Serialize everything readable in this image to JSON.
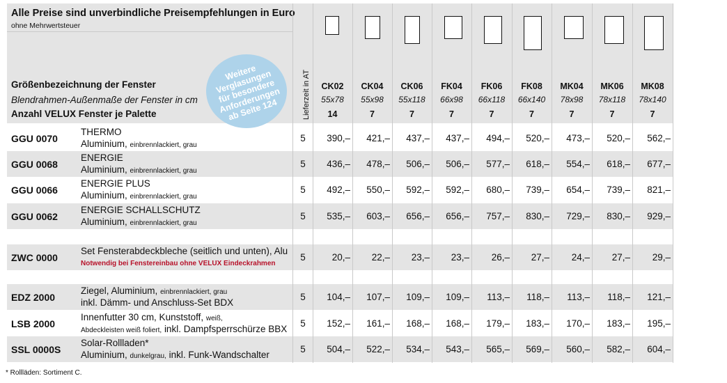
{
  "header": {
    "title": "Alle Preise sind unverbindliche Preisempfehlungen in Euro",
    "subtitle": "ohne Mehrwertsteuer",
    "label_size": "Größenbezeichnung der Fenster",
    "label_dims": "Blendrahmen-Außenmaße der Fenster in cm",
    "label_count": "Anzahl VELUX Fenster je Palette",
    "badge": "Weitere\nVerglasungen\nfür besondere\nAnforderungen\nab Seite 124",
    "lieferzeit": "Lieferzeit in AT"
  },
  "sizes": [
    {
      "code": "CK02",
      "dims": "55x78",
      "count": "14"
    },
    {
      "code": "CK04",
      "dims": "55x98",
      "count": "7"
    },
    {
      "code": "CK06",
      "dims": "55x118",
      "count": "7"
    },
    {
      "code": "FK04",
      "dims": "66x98",
      "count": "7"
    },
    {
      "code": "FK06",
      "dims": "66x118",
      "count": "7"
    },
    {
      "code": "FK08",
      "dims": "66x140",
      "count": "7"
    },
    {
      "code": "MK04",
      "dims": "78x98",
      "count": "7"
    },
    {
      "code": "MK06",
      "dims": "78x118",
      "count": "7"
    },
    {
      "code": "MK08",
      "dims": "78x140",
      "count": "7"
    }
  ],
  "rows": [
    {
      "code": "GGU 0070",
      "line1": "THERMO",
      "line2_main": "Aluminium,",
      "line2_small": "einbrennlackiert, grau",
      "line2_tail": "",
      "lead": "5",
      "prices": [
        "390,–",
        "421,–",
        "437,–",
        "437,–",
        "494,–",
        "520,–",
        "473,–",
        "520,–",
        "562,–"
      ]
    },
    {
      "code": "GGU 0068",
      "line1": "ENERGIE",
      "line2_main": "Aluminium,",
      "line2_small": "einbrennlackiert, grau",
      "line2_tail": "",
      "lead": "5",
      "prices": [
        "436,–",
        "478,–",
        "506,–",
        "506,–",
        "577,–",
        "618,–",
        "554,–",
        "618,–",
        "677,–"
      ]
    },
    {
      "code": "GGU 0066",
      "line1": "ENERGIE PLUS",
      "line2_main": "Aluminium,",
      "line2_small": "einbrennlackiert, grau",
      "line2_tail": "",
      "lead": "5",
      "prices": [
        "492,–",
        "550,–",
        "592,–",
        "592,–",
        "680,–",
        "739,–",
        "654,–",
        "739,–",
        "821,–"
      ]
    },
    {
      "code": "GGU 0062",
      "line1": "ENERGIE SCHALLSCHUTZ",
      "line2_main": "Aluminium,",
      "line2_small": "einbrennlackiert, grau",
      "line2_tail": "",
      "lead": "5",
      "prices": [
        "535,–",
        "603,–",
        "656,–",
        "656,–",
        "757,–",
        "830,–",
        "729,–",
        "830,–",
        "929,–"
      ]
    },
    {
      "code": "ZWC 0000",
      "line1": "Set Fensterabdeckbleche (seitlich und unten), Alu",
      "note": "Notwendig bei Fenstereinbau ohne VELUX Eindeckrahmen",
      "lead": "5",
      "prices": [
        "20,–",
        "22,–",
        "23,–",
        "23,–",
        "26,–",
        "27,–",
        "24,–",
        "27,–",
        "29,–"
      ]
    },
    {
      "code": "EDZ 2000",
      "line1_main": "Ziegel, Aluminium,",
      "line1_small": "einbrennlackiert, grau",
      "line2_main": "inkl. Dämm- und Anschluss-Set BDX",
      "lead": "5",
      "prices": [
        "104,–",
        "107,–",
        "109,–",
        "109,–",
        "113,–",
        "118,–",
        "113,–",
        "118,–",
        "121,–"
      ]
    },
    {
      "code": "LSB 2000",
      "line1_main": "Innenfutter 30 cm, Kunststoff,",
      "line1_small": "weiß,",
      "line2_small": "Abdeckleisten weiß foliert,",
      "line2_main": "inkl. Dampfsperrschürze BBX",
      "lead": "5",
      "prices": [
        "152,–",
        "161,–",
        "168,–",
        "168,–",
        "179,–",
        "183,–",
        "170,–",
        "183,–",
        "195,–"
      ]
    },
    {
      "code": "SSL 0000S",
      "line1_main": "Solar-Rollladen*",
      "line2_main": "Aluminium,",
      "line2_small": "dunkelgrau,",
      "line2_tail": "inkl. Funk-Wandschalter",
      "lead": "5",
      "prices": [
        "504,–",
        "522,–",
        "534,–",
        "543,–",
        "565,–",
        "569,–",
        "560,–",
        "582,–",
        "604,–"
      ]
    }
  ],
  "footnote": "*   Rollläden: Sortiment C.",
  "colors": {
    "shade": "#e4e4e4",
    "badge": "#aed3ea",
    "note_red": "#b7122a"
  }
}
